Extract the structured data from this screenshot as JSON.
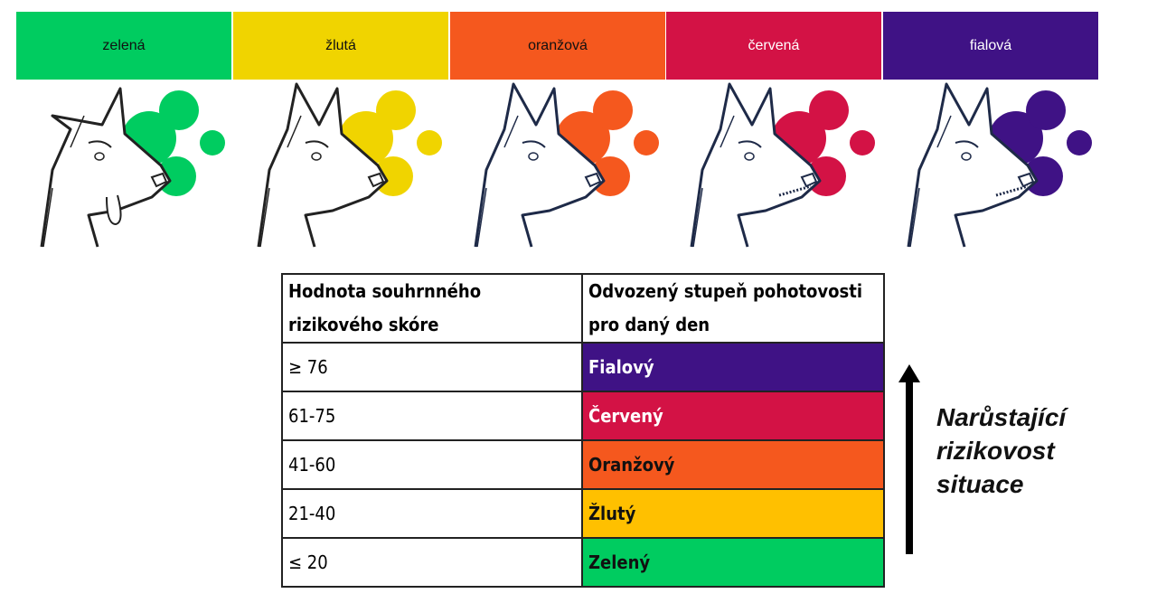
{
  "levels": [
    {
      "label": "zelená",
      "color": "#00CC60",
      "line": "#222"
    },
    {
      "label": "žlutá",
      "color": "#F0D400",
      "line": "#222"
    },
    {
      "label": "oranžová",
      "color": "#F5581E",
      "line": "#1e2a48"
    },
    {
      "label": "červená",
      "color": "#D31245",
      "line": "#1e2a48"
    },
    {
      "label": "fialová",
      "color": "#3F1285",
      "line": "#1e2a48"
    }
  ],
  "table": {
    "header": [
      "Hodnota souhrnného rizikového skóre",
      "Odvozený stupeň pohotovosti pro daný den"
    ],
    "rows": [
      {
        "score": "≥ 76",
        "level": "Fialový",
        "color": "#3F1285",
        "text": "#ffffff"
      },
      {
        "score": "61-75",
        "level": "Červený",
        "color": "#D31245",
        "text": "#ffffff"
      },
      {
        "score": "41-60",
        "level": "Oranžový",
        "color": "#F5581E",
        "text": "#111111"
      },
      {
        "score": "21-40",
        "level": "Žlutý",
        "color": "#FFC000",
        "text": "#111111"
      },
      {
        "score": "≤ 20",
        "level": "Zelený",
        "color": "#00CC60",
        "text": "#111111"
      }
    ]
  },
  "arrow_label": [
    "Narůstající",
    "rizikovost",
    "situace"
  ]
}
